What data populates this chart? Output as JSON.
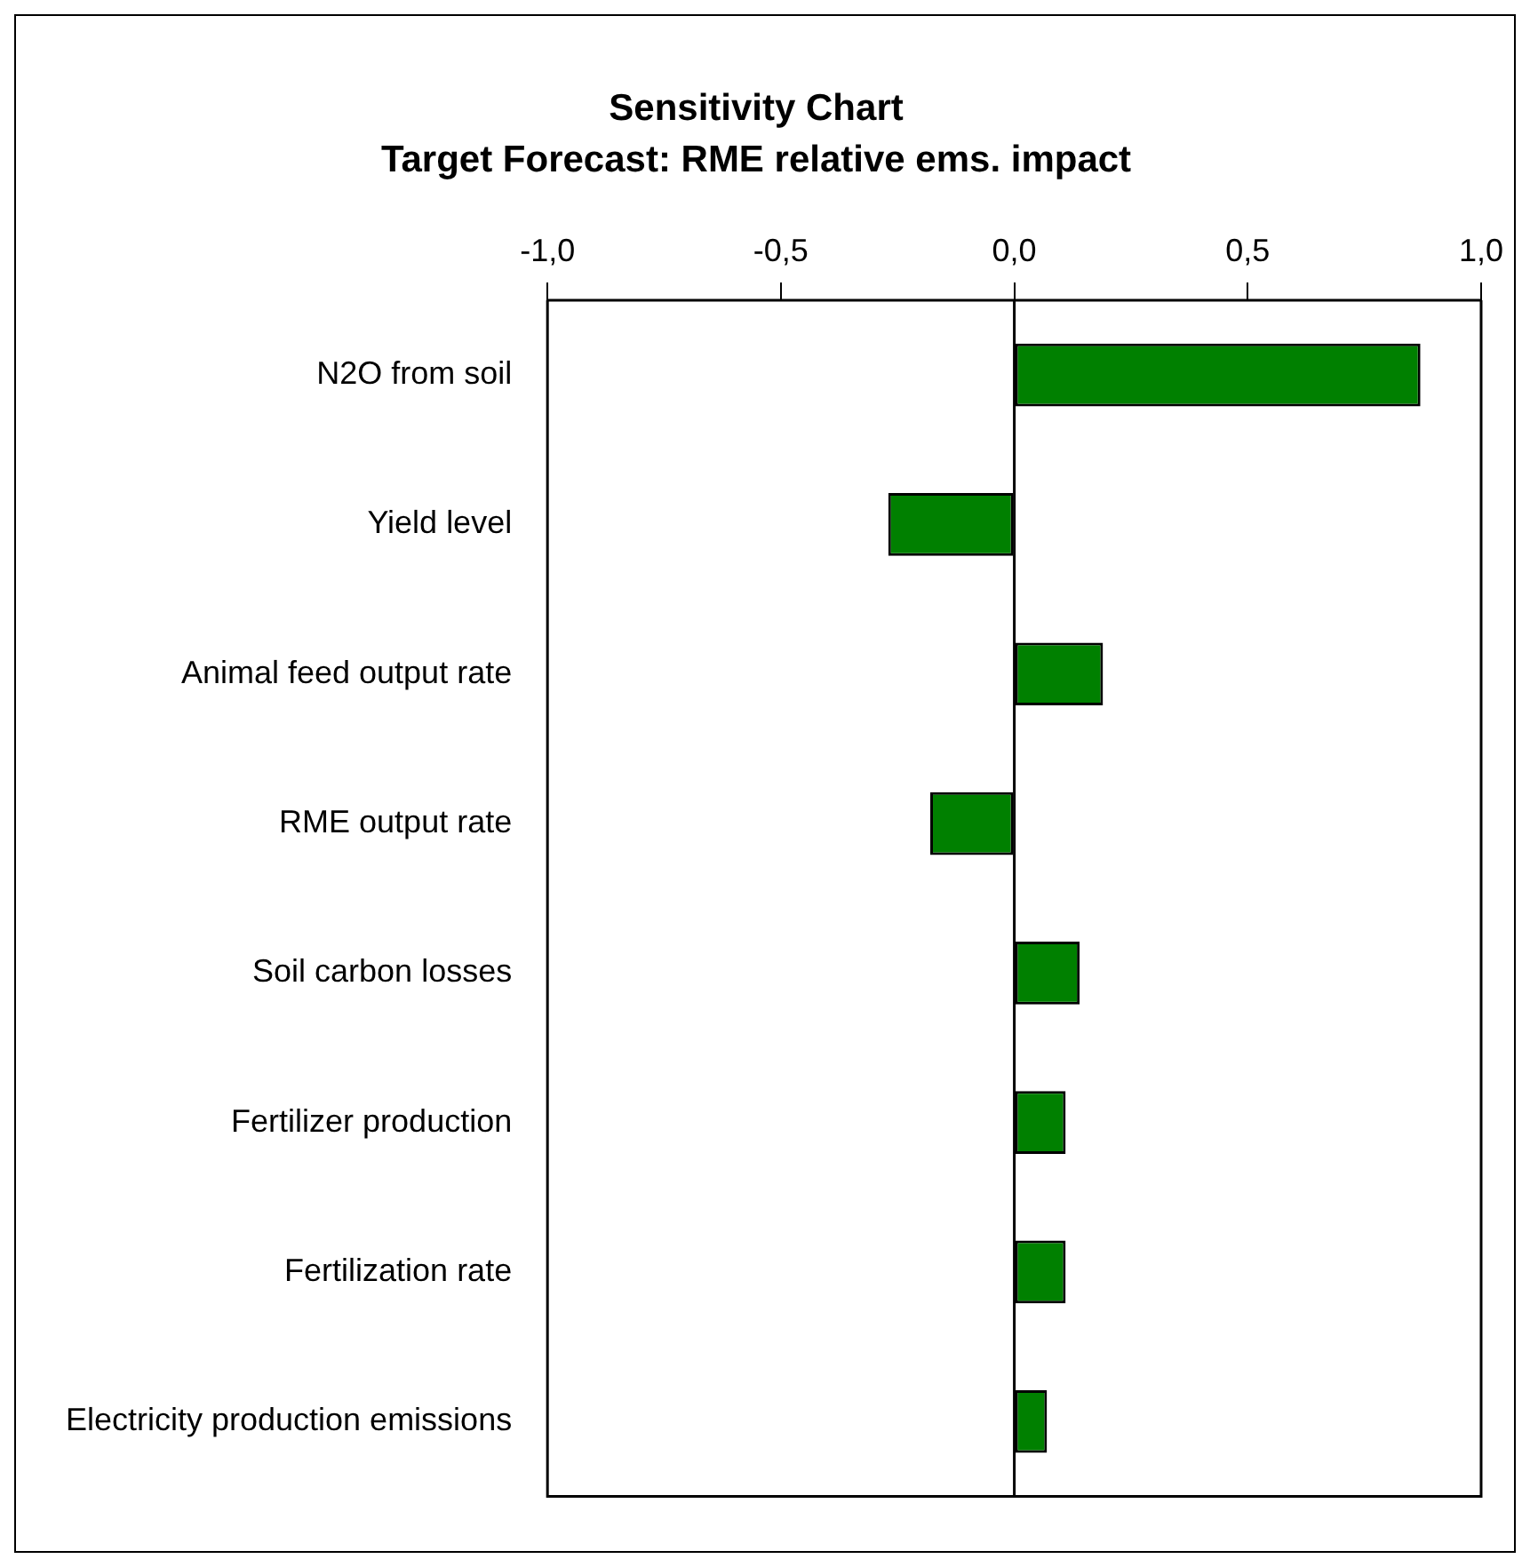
{
  "chart_data": {
    "type": "bar",
    "orientation": "horizontal",
    "title": "Sensitivity Chart",
    "subtitle": "Target Forecast: RME relative ems. impact",
    "categories": [
      "N2O from soil",
      "Yield level",
      "Animal feed output rate",
      "RME output rate",
      "Soil carbon losses",
      "Fertilizer production",
      "Fertilization rate",
      "Electricity production emissions"
    ],
    "values": [
      0.87,
      -0.27,
      0.19,
      -0.18,
      0.14,
      0.11,
      0.11,
      0.07
    ],
    "color": "#008000",
    "xlim": [
      -1,
      1
    ],
    "xticks": [
      {
        "value": -1,
        "label": "-1,0"
      },
      {
        "value": -0.5,
        "label": "-0,5"
      },
      {
        "value": 0,
        "label": "0,0"
      },
      {
        "value": 0.5,
        "label": "0,5"
      },
      {
        "value": 1,
        "label": "1,0"
      }
    ],
    "ref_lines": [
      {
        "axis": "x",
        "value": 0,
        "color": "#000000"
      }
    ],
    "grid": false,
    "legend": false
  }
}
